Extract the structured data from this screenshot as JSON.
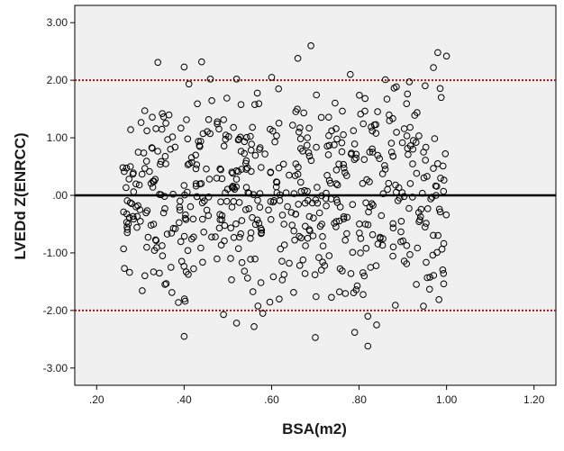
{
  "chart_data": {
    "type": "scatter",
    "title": "",
    "xlabel": "BSA(m2)",
    "ylabel": "LVEDd Z(ENRCC)",
    "xlim": [
      0.15,
      1.25
    ],
    "ylim": [
      -3.3,
      3.3
    ],
    "x_ticks": [
      0.2,
      0.4,
      0.6,
      0.8,
      1.0,
      1.2
    ],
    "x_tick_labels": [
      ".20",
      ".40",
      ".60",
      ".80",
      "1.00",
      "1.20"
    ],
    "y_ticks": [
      -3,
      -2,
      -1,
      0,
      1,
      2,
      3
    ],
    "y_tick_labels": [
      "-3.00",
      "-2.00",
      "-1.00",
      ".00",
      "1.00",
      "2.00",
      "3.00"
    ],
    "grid": false,
    "legend": "none",
    "reference_lines": [
      {
        "y": 2.0,
        "style": "dotted",
        "color": "#aa1111"
      },
      {
        "y": 0.0,
        "style": "solid",
        "color": "#000000"
      },
      {
        "y": -2.0,
        "style": "dotted",
        "color": "#aa1111"
      }
    ],
    "colors": {
      "plot_background": "#f0f0f0",
      "marker_stroke": "#000000"
    },
    "marker": "open-circle",
    "point_count": 600,
    "x_distribution": {
      "min": 0.26,
      "max": 1.0,
      "mode": "uniform"
    },
    "y_distribution": {
      "mean": 0.0,
      "sd": 0.95,
      "min": -2.65,
      "max": 2.6
    },
    "series": [
      {
        "points": [
          [
            0.26,
            0.48
          ],
          [
            0.29,
            -0.2
          ],
          [
            0.3,
            -0.45
          ],
          [
            0.31,
            1.47
          ],
          [
            0.34,
            2.31
          ],
          [
            0.35,
            1.42
          ],
          [
            0.4,
            2.23
          ],
          [
            0.44,
            2.32
          ],
          [
            0.4,
            -2.45
          ],
          [
            0.49,
            -2.07
          ],
          [
            0.52,
            -2.22
          ],
          [
            0.56,
            -2.28
          ],
          [
            0.58,
            -2.05
          ],
          [
            0.7,
            -2.47
          ],
          [
            0.82,
            -2.62
          ],
          [
            0.82,
            -2.1
          ],
          [
            0.84,
            -2.25
          ],
          [
            0.79,
            -2.38
          ],
          [
            0.69,
            2.6
          ],
          [
            0.66,
            2.38
          ],
          [
            0.78,
            2.1
          ],
          [
            0.86,
            2.01
          ],
          [
            0.98,
            2.48
          ],
          [
            0.97,
            2.22
          ],
          [
            1.0,
            2.42
          ],
          [
            0.6,
            2.05
          ],
          [
            0.52,
            2.02
          ],
          [
            0.46,
            2.02
          ],
          [
            0.33,
            -1.33
          ],
          [
            0.37,
            -1.25
          ]
        ]
      }
    ]
  }
}
